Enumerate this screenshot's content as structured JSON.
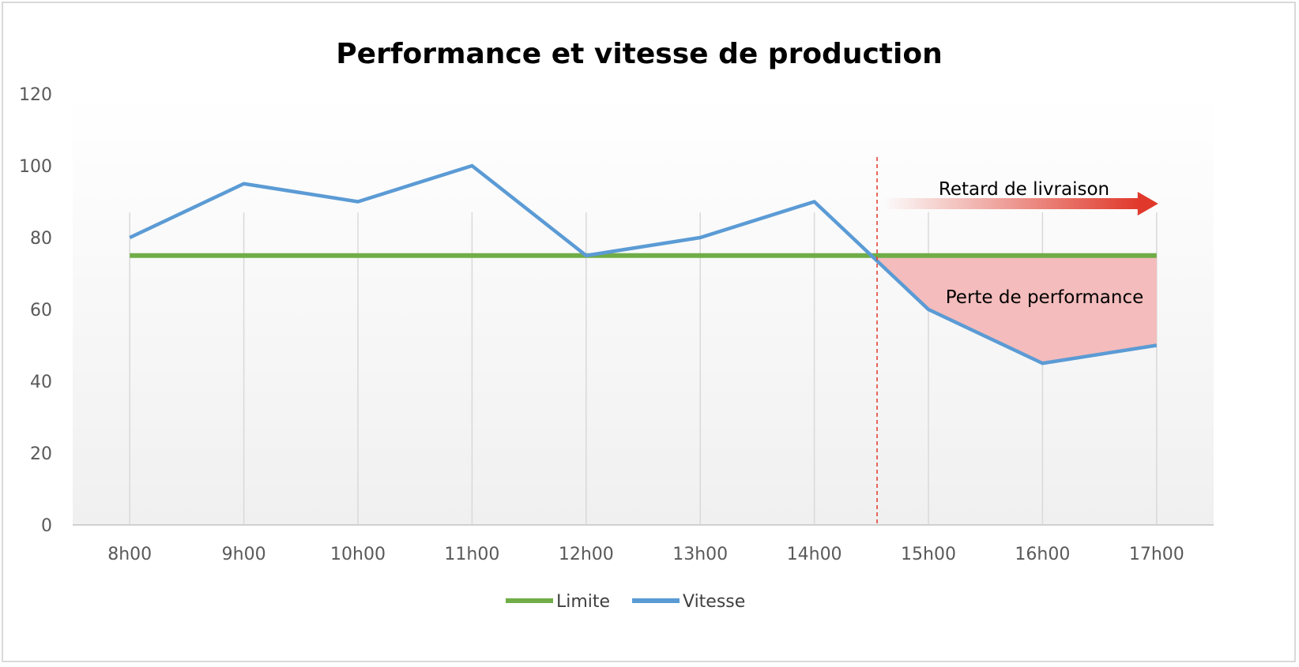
{
  "chart_data": {
    "type": "line",
    "title": "Performance et vitesse de production",
    "categories": [
      "8h00",
      "9h00",
      "10h00",
      "11h00",
      "12h00",
      "13h00",
      "14h00",
      "15h00",
      "16h00",
      "17h00"
    ],
    "series": [
      {
        "name": "Limite",
        "values": [
          75,
          75,
          75,
          75,
          75,
          75,
          75,
          75,
          75,
          75
        ],
        "color": "#70ad47"
      },
      {
        "name": "Vitesse",
        "values": [
          80,
          95,
          90,
          100,
          75,
          80,
          90,
          60,
          45,
          50
        ],
        "color": "#5b9bd5"
      }
    ],
    "yticks": [
      0,
      20,
      40,
      60,
      80,
      100,
      120
    ],
    "ylim": [
      0,
      120
    ],
    "grid": "vertical",
    "legend": "bottom",
    "annotations": {
      "delay_label": "Retard de livraison",
      "loss_label": "Perte de performance",
      "marker_x": 6.55,
      "fill_color": "#f4bcbc",
      "arrow_color": "#e0392b",
      "marker_color": "#e0392b"
    }
  }
}
